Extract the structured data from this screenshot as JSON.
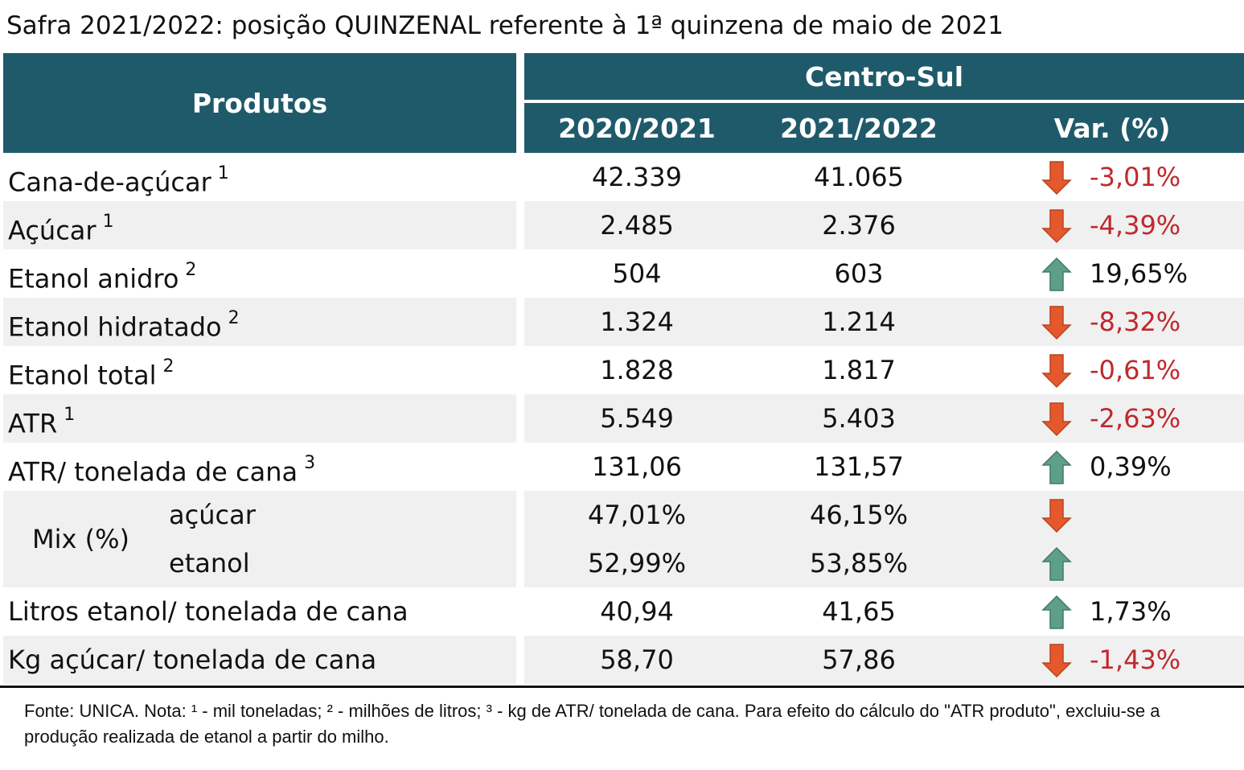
{
  "title": "Safra 2021/2022: posição QUINZENAL referente à 1ª quinzena de maio de 2021",
  "header": {
    "products": "Produtos",
    "region": "Centro-Sul",
    "columns": [
      "2020/2021",
      "2021/2022",
      "Var. (%)"
    ]
  },
  "rows": [
    {
      "label": "Cana-de-açúcar",
      "note": "1",
      "values": [
        "42.339",
        "41.065"
      ],
      "var": "-3,01%",
      "direction": "down"
    },
    {
      "label": "Açúcar",
      "note": "1",
      "values": [
        "2.485",
        "2.376"
      ],
      "var": "-4,39%",
      "direction": "down"
    },
    {
      "label": "Etanol anidro",
      "note": "2",
      "values": [
        "504",
        "603"
      ],
      "var": "19,65%",
      "direction": "up"
    },
    {
      "label": "Etanol hidratado",
      "note": "2",
      "values": [
        "1.324",
        "1.214"
      ],
      "var": "-8,32%",
      "direction": "down"
    },
    {
      "label": "Etanol total",
      "note": "2",
      "values": [
        "1.828",
        "1.817"
      ],
      "var": "-0,61%",
      "direction": "down"
    },
    {
      "label": "ATR",
      "note": "1",
      "values": [
        "5.549",
        "5.403"
      ],
      "var": "-2,63%",
      "direction": "down"
    },
    {
      "label": "ATR/ tonelada de cana",
      "note": "3",
      "values": [
        "131,06",
        "131,57"
      ],
      "var": "0,39%",
      "direction": "up"
    }
  ],
  "mix": {
    "label": "Mix (%)",
    "items": [
      {
        "label": "açúcar",
        "values": [
          "47,01%",
          "46,15%"
        ],
        "direction": "down"
      },
      {
        "label": "etanol",
        "values": [
          "52,99%",
          "53,85%"
        ],
        "direction": "up"
      }
    ]
  },
  "rows_after": [
    {
      "label": "Litros etanol/ tonelada de cana",
      "values": [
        "40,94",
        "41,65"
      ],
      "var": "1,73%",
      "direction": "up"
    },
    {
      "label": "Kg açúcar/ tonelada de cana",
      "values": [
        "58,70",
        "57,86"
      ],
      "var": "-1,43%",
      "direction": "down"
    }
  ],
  "footnote": "Fonte: UNICA. Nota: ¹ - mil toneladas; ² - milhões de litros; ³ - kg de ATR/ tonelada de cana. Para efeito do cálculo do \"ATR produto\", excluiu-se a produção realizada de etanol a partir do milho."
}
